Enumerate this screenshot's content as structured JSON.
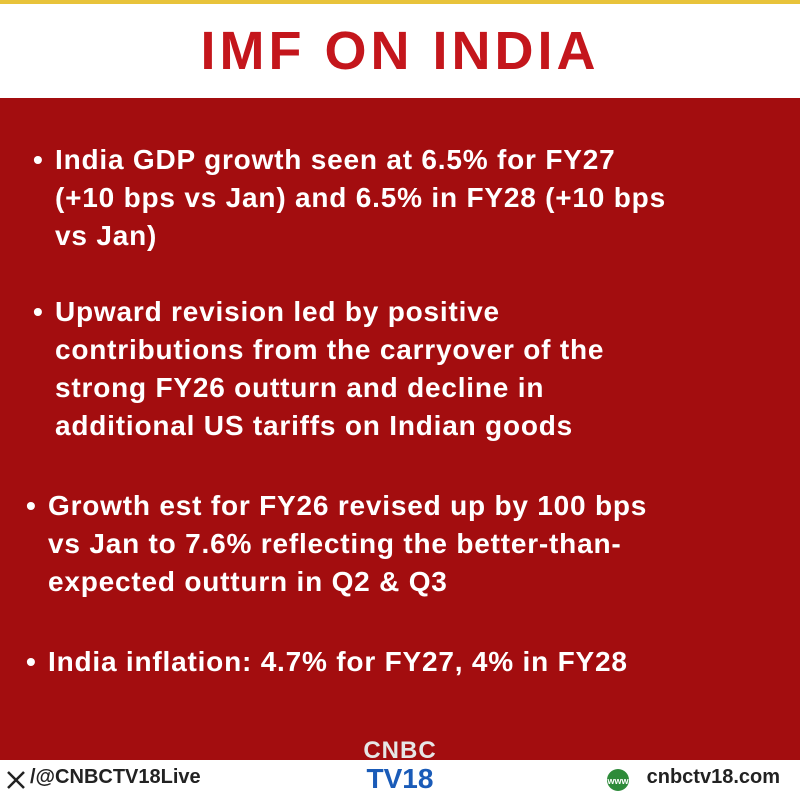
{
  "header": {
    "title": "IMF ON INDIA"
  },
  "bullets": [
    {
      "lines": [
        "India GDP growth seen at 6.5% for FY27",
        "(+10 bps vs Jan) and 6.5% in FY28 (+10 bps",
        "vs Jan)"
      ]
    },
    {
      "lines": [
        "Upward revision led by positive",
        "contributions from the carryover of the",
        "strong FY26 outturn and decline in",
        "additional US tariffs on Indian goods"
      ]
    },
    {
      "lines": [
        "Growth est for FY26 revised up by 100 bps",
        "vs Jan to 7.6% reflecting the better-than-",
        "expected outturn in Q2 & Q3"
      ]
    },
    {
      "lines": [
        "India inflation: 4.7% for FY27, 4% in FY28"
      ]
    }
  ],
  "footer": {
    "handle": "/@CNBCTV18Live",
    "logo_top": "CNBC",
    "logo_bottom": "TV18",
    "website": "cnbctv18.com"
  }
}
